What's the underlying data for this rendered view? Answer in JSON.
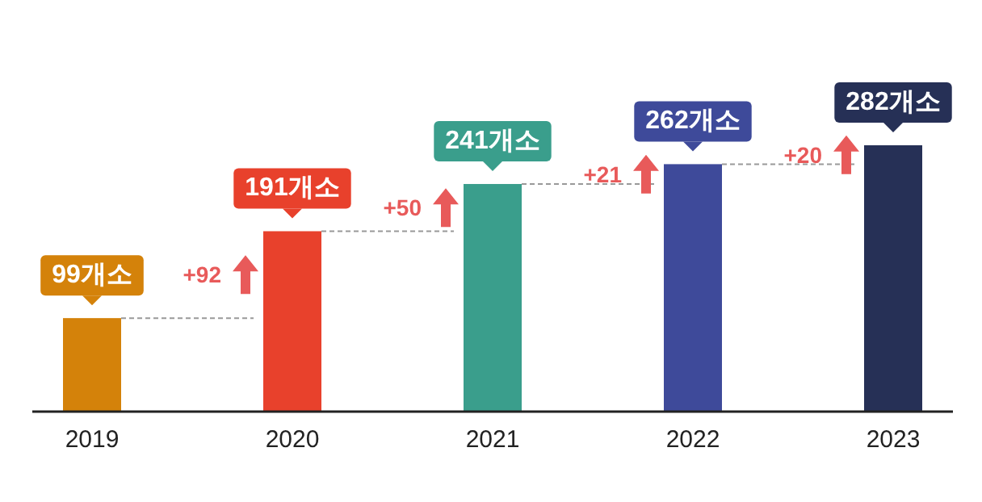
{
  "chart_data": {
    "type": "bar",
    "categories": [
      "2019",
      "2020",
      "2021",
      "2022",
      "2023"
    ],
    "values": [
      99,
      191,
      241,
      262,
      282
    ],
    "colors": [
      "#d4820a",
      "#e8412c",
      "#3a9e8c",
      "#3e4a9a",
      "#263056"
    ],
    "value_labels": [
      "99개소",
      "191개소",
      "241개소",
      "262개소",
      "282개소"
    ],
    "annotations": [
      "+92",
      "+50",
      "+21",
      "+20"
    ],
    "tick_labels": "x"
  }
}
